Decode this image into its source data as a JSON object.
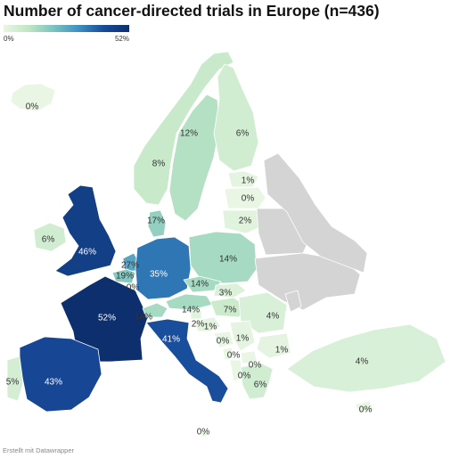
{
  "title": "Number of cancer-directed trials in Europe (n=436)",
  "legend": {
    "min_label": "0%",
    "max_label": "52%",
    "min": 0,
    "max": 52
  },
  "credit": "Erstellt mit Datawrapper",
  "colors": {
    "nodata": "#d4d4d4",
    "scale": [
      "#e8f6e3",
      "#bfe6c3",
      "#79c3c0",
      "#3d8fc4",
      "#174a9a",
      "#0e2f6e"
    ]
  },
  "chart_data": {
    "type": "choropleth",
    "title": "Number of cancer-directed trials in Europe (n=436)",
    "regions": [
      {
        "id": "iceland",
        "value": 0,
        "label": "0%"
      },
      {
        "id": "norway",
        "value": 8,
        "label": "8%"
      },
      {
        "id": "sweden",
        "value": 12,
        "label": "12%"
      },
      {
        "id": "finland",
        "value": 6,
        "label": "6%"
      },
      {
        "id": "estonia",
        "value": 1,
        "label": "1%"
      },
      {
        "id": "latvia",
        "value": 0,
        "label": "0%"
      },
      {
        "id": "lithuania",
        "value": 2,
        "label": "2%"
      },
      {
        "id": "denmark",
        "value": 17,
        "label": "17%"
      },
      {
        "id": "ireland",
        "value": 6,
        "label": "6%"
      },
      {
        "id": "uk",
        "value": 46,
        "label": "46%"
      },
      {
        "id": "netherlands",
        "value": 27,
        "label": "27%"
      },
      {
        "id": "belgium",
        "value": 19,
        "label": "19%"
      },
      {
        "id": "luxembourg",
        "value": 0,
        "label": "0%"
      },
      {
        "id": "germany",
        "value": 35,
        "label": "35%"
      },
      {
        "id": "poland",
        "value": 14,
        "label": "14%"
      },
      {
        "id": "czechia",
        "value": 14,
        "label": "14%"
      },
      {
        "id": "slovakia",
        "value": 3,
        "label": "3%"
      },
      {
        "id": "austria",
        "value": 14,
        "label": "14%"
      },
      {
        "id": "hungary",
        "value": 7,
        "label": "7%"
      },
      {
        "id": "romania",
        "value": 4,
        "label": "4%"
      },
      {
        "id": "france",
        "value": 52,
        "label": "52%"
      },
      {
        "id": "switzerland",
        "value": 14,
        "label": "14%"
      },
      {
        "id": "slovenia",
        "value": 2,
        "label": "2%"
      },
      {
        "id": "croatia",
        "value": 1,
        "label": "1%"
      },
      {
        "id": "italy",
        "value": 41,
        "label": "41%"
      },
      {
        "id": "serbia",
        "value": 1,
        "label": "1%"
      },
      {
        "id": "bulgaria",
        "value": 1,
        "label": "1%"
      },
      {
        "id": "bosnia",
        "value": 0,
        "label": "0%"
      },
      {
        "id": "montenegro",
        "value": 0,
        "label": "0%"
      },
      {
        "id": "north-macedonia",
        "value": 0,
        "label": "0%"
      },
      {
        "id": "albania",
        "value": 0,
        "label": "0%"
      },
      {
        "id": "greece",
        "value": 6,
        "label": "6%"
      },
      {
        "id": "turkey",
        "value": 4,
        "label": "4%"
      },
      {
        "id": "cyprus",
        "value": 0,
        "label": "0%"
      },
      {
        "id": "spain",
        "value": 43,
        "label": "43%"
      },
      {
        "id": "portugal",
        "value": 5,
        "label": "5%"
      },
      {
        "id": "malta",
        "value": 0,
        "label": "0%"
      },
      {
        "id": "belarus",
        "value": null,
        "label": ""
      },
      {
        "id": "ukraine",
        "value": null,
        "label": ""
      },
      {
        "id": "moldova",
        "value": null,
        "label": ""
      },
      {
        "id": "russia",
        "value": null,
        "label": ""
      }
    ]
  }
}
